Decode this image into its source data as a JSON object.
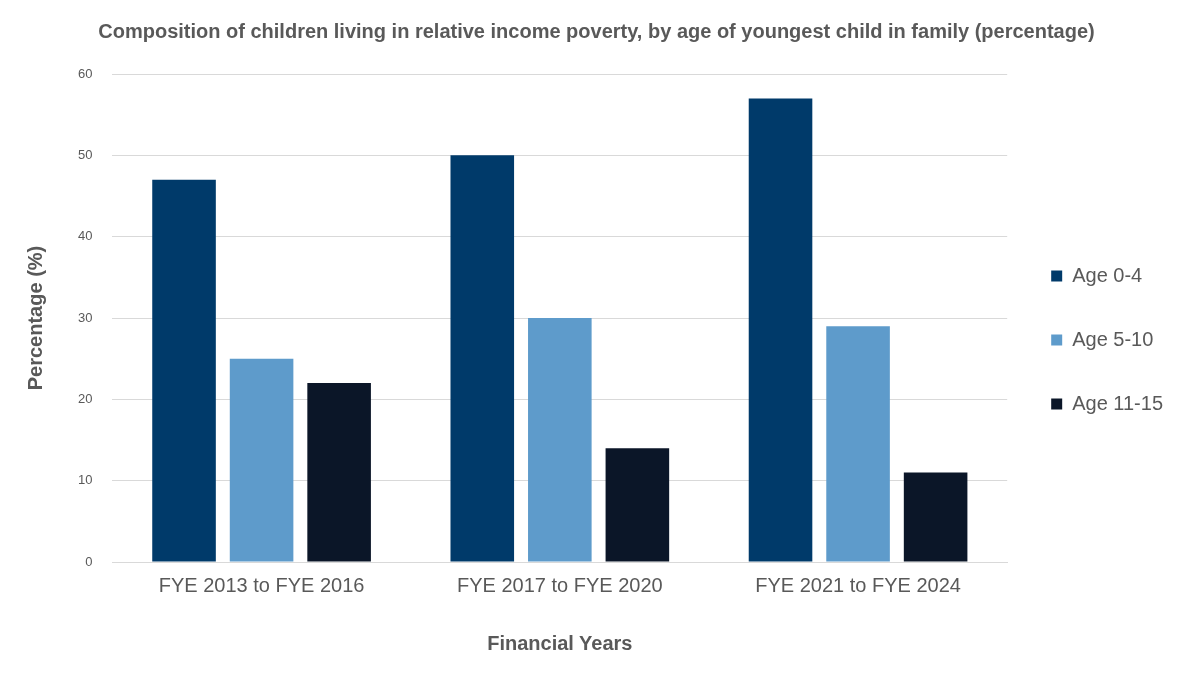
{
  "chart_data": {
    "type": "bar",
    "title": "Composition of children living in relative income poverty, by age of youngest child in family (percentage)",
    "xlabel": "Financial Years",
    "ylabel": "Percentage (%)",
    "categories": [
      "FYE 2013 to FYE 2016",
      "FYE 2017 to FYE 2020",
      "FYE 2021 to FYE 2024"
    ],
    "series": [
      {
        "name": "Age 0-4",
        "color": "#003a6a",
        "values": [
          47,
          50,
          57
        ]
      },
      {
        "name": "Age 5-10",
        "color": "#5e9bcb",
        "values": [
          25,
          30,
          29
        ]
      },
      {
        "name": "Age 11-15",
        "color": "#0b1628",
        "values": [
          22,
          14,
          11
        ]
      }
    ],
    "ylim": [
      0,
      60
    ],
    "yticks": [
      0,
      10,
      20,
      30,
      40,
      50,
      60
    ],
    "grid": "y",
    "legend": "right"
  }
}
